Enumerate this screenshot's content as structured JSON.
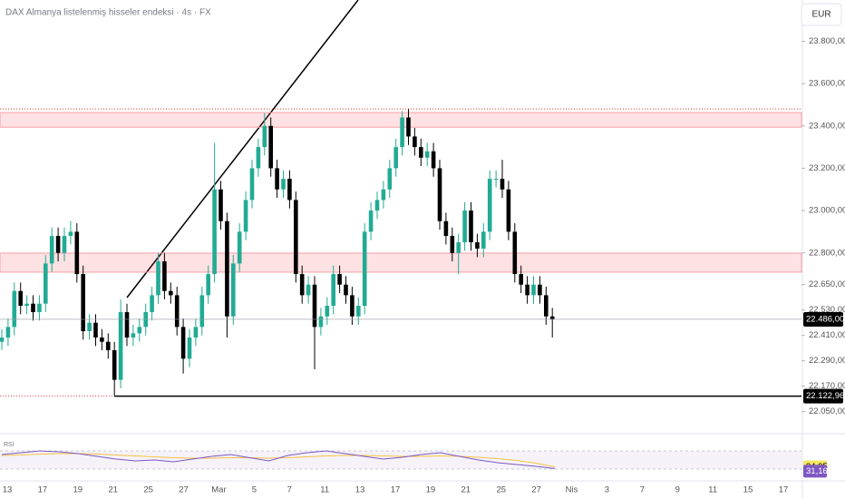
{
  "chart_data": {
    "type": "candlestick",
    "title": "DAX Almanya listelenmiş hisseler endeksi · 4s · FX",
    "currency": "EUR",
    "up_color": "#22ab94",
    "down_color": "#000000",
    "ylim": [
      21980,
      23995
    ],
    "yticks": [
      {
        "value": 23800,
        "label": "23.800,00"
      },
      {
        "value": 23600,
        "label": "23.600,00"
      },
      {
        "value": 23400,
        "label": "23.400,00"
      },
      {
        "value": 23200,
        "label": "23.200,00"
      },
      {
        "value": 23000,
        "label": "23.000,00"
      },
      {
        "value": 22800,
        "label": "22.800,00"
      },
      {
        "value": 22650,
        "label": "22.650,00"
      },
      {
        "value": 22530,
        "label": "22.530,00"
      },
      {
        "value": 22410,
        "label": "22.410,00"
      },
      {
        "value": 22290,
        "label": "22.290,00"
      },
      {
        "value": 22170,
        "label": "22.170,00"
      },
      {
        "value": 22050,
        "label": "22.050,00"
      }
    ],
    "x_labels": [
      "13",
      "17",
      "19",
      "21",
      "25",
      "27",
      "Mar",
      "5",
      "7",
      "11",
      "13",
      "17",
      "19",
      "21",
      "25",
      "27",
      "Nis",
      "3",
      "7",
      "9",
      "11",
      "15",
      "17"
    ],
    "candles": [
      [
        22380,
        22440,
        22340,
        22400
      ],
      [
        22400,
        22490,
        22360,
        22450
      ],
      [
        22450,
        22660,
        22410,
        22620
      ],
      [
        22620,
        22660,
        22510,
        22550
      ],
      [
        22550,
        22600,
        22510,
        22560
      ],
      [
        22560,
        22600,
        22480,
        22520
      ],
      [
        22520,
        22600,
        22480,
        22560
      ],
      [
        22560,
        22790,
        22520,
        22750
      ],
      [
        22750,
        22920,
        22710,
        22880
      ],
      [
        22880,
        22920,
        22760,
        22800
      ],
      [
        22800,
        22920,
        22760,
        22880
      ],
      [
        22880,
        22950,
        22840,
        22900
      ],
      [
        22900,
        22940,
        22660,
        22700
      ],
      [
        22700,
        22740,
        22390,
        22430
      ],
      [
        22430,
        22510,
        22390,
        22470
      ],
      [
        22470,
        22510,
        22360,
        22400
      ],
      [
        22400,
        22440,
        22340,
        22380
      ],
      [
        22380,
        22420,
        22300,
        22340
      ],
      [
        22340,
        22380,
        22123,
        22200
      ],
      [
        22200,
        22580,
        22160,
        22520
      ],
      [
        22520,
        22560,
        22360,
        22400
      ],
      [
        22400,
        22460,
        22360,
        22420
      ],
      [
        22420,
        22490,
        22380,
        22450
      ],
      [
        22450,
        22560,
        22410,
        22520
      ],
      [
        22520,
        22640,
        22480,
        22600
      ],
      [
        22600,
        22800,
        22560,
        22760
      ],
      [
        22760,
        22800,
        22580,
        22620
      ],
      [
        22620,
        22660,
        22560,
        22600
      ],
      [
        22600,
        22640,
        22410,
        22450
      ],
      [
        22450,
        22490,
        22230,
        22300
      ],
      [
        22300,
        22440,
        22260,
        22400
      ],
      [
        22400,
        22490,
        22360,
        22450
      ],
      [
        22450,
        22640,
        22410,
        22600
      ],
      [
        22600,
        22740,
        22560,
        22700
      ],
      [
        22700,
        23320,
        22660,
        23100
      ],
      [
        23100,
        23140,
        22910,
        22950
      ],
      [
        22950,
        22990,
        22400,
        22500
      ],
      [
        22500,
        22790,
        22460,
        22750
      ],
      [
        22750,
        22940,
        22710,
        22900
      ],
      [
        22900,
        23090,
        22860,
        23050
      ],
      [
        23050,
        23240,
        23010,
        23200
      ],
      [
        23200,
        23340,
        23160,
        23300
      ],
      [
        23300,
        23460,
        23260,
        23400
      ],
      [
        23400,
        23440,
        23160,
        23200
      ],
      [
        23200,
        23240,
        23060,
        23100
      ],
      [
        23100,
        23190,
        23060,
        23150
      ],
      [
        23150,
        23190,
        23010,
        23050
      ],
      [
        23050,
        23090,
        22660,
        22700
      ],
      [
        22700,
        22740,
        22560,
        22600
      ],
      [
        22600,
        22690,
        22560,
        22650
      ],
      [
        22650,
        22690,
        22250,
        22450
      ],
      [
        22450,
        22540,
        22410,
        22500
      ],
      [
        22500,
        22590,
        22460,
        22550
      ],
      [
        22550,
        22740,
        22510,
        22700
      ],
      [
        22700,
        22740,
        22610,
        22650
      ],
      [
        22650,
        22690,
        22560,
        22600
      ],
      [
        22600,
        22640,
        22460,
        22500
      ],
      [
        22500,
        22590,
        22460,
        22550
      ],
      [
        22550,
        22940,
        22510,
        22900
      ],
      [
        22900,
        23040,
        22860,
        23000
      ],
      [
        23000,
        23090,
        22960,
        23050
      ],
      [
        23050,
        23140,
        23010,
        23100
      ],
      [
        23100,
        23240,
        23060,
        23200
      ],
      [
        23200,
        23340,
        23160,
        23300
      ],
      [
        23300,
        23470,
        23260,
        23440
      ],
      [
        23440,
        23480,
        23310,
        23350
      ],
      [
        23350,
        23390,
        23260,
        23300
      ],
      [
        23300,
        23340,
        23210,
        23250
      ],
      [
        23250,
        23320,
        23210,
        23280
      ],
      [
        23280,
        23320,
        23160,
        23200
      ],
      [
        23200,
        23240,
        22910,
        22950
      ],
      [
        22950,
        22990,
        22840,
        22880
      ],
      [
        22880,
        22920,
        22760,
        22800
      ],
      [
        22800,
        22890,
        22700,
        22850
      ],
      [
        22850,
        23040,
        22810,
        23000
      ],
      [
        23000,
        23040,
        22810,
        22850
      ],
      [
        22850,
        22890,
        22780,
        22820
      ],
      [
        22820,
        22940,
        22780,
        22900
      ],
      [
        22900,
        23190,
        22860,
        23150
      ],
      [
        23150,
        23190,
        23110,
        23150
      ],
      [
        23150,
        23240,
        23060,
        23100
      ],
      [
        23100,
        23140,
        22860,
        22900
      ],
      [
        22900,
        22940,
        22660,
        22700
      ],
      [
        22700,
        22740,
        22610,
        22650
      ],
      [
        22650,
        22690,
        22560,
        22600
      ],
      [
        22600,
        22690,
        22560,
        22650
      ],
      [
        22650,
        22690,
        22560,
        22600
      ],
      [
        22600,
        22640,
        22460,
        22500
      ],
      [
        22500,
        22540,
        22400,
        22486
      ]
    ],
    "zones": [
      [
        23394,
        23463
      ],
      [
        22709,
        22799
      ]
    ],
    "resistance_line": 23480,
    "support": {
      "value": 22122.96,
      "label": "22.122,96"
    },
    "last": {
      "value": 22486,
      "label": "22.486,00"
    },
    "rsi": {
      "name": "RSI",
      "ylim": [
        0,
        100
      ],
      "bands": [
        70,
        30
      ],
      "values": [
        62,
        66,
        70,
        68,
        64,
        58,
        52,
        48,
        50,
        46,
        52,
        58,
        62,
        55,
        48,
        60,
        66,
        70,
        64,
        58,
        52,
        56,
        62,
        66,
        58,
        50,
        44,
        40,
        36,
        31.16
      ],
      "ma": [
        60,
        61,
        63,
        64,
        64,
        63,
        61,
        59,
        57,
        55,
        54,
        54,
        55,
        55,
        54,
        55,
        57,
        59,
        60,
        60,
        59,
        58,
        58,
        59,
        58,
        56,
        53,
        49,
        43,
        34.95
      ],
      "value_label": "31,16",
      "ma_label": "34,95"
    }
  }
}
